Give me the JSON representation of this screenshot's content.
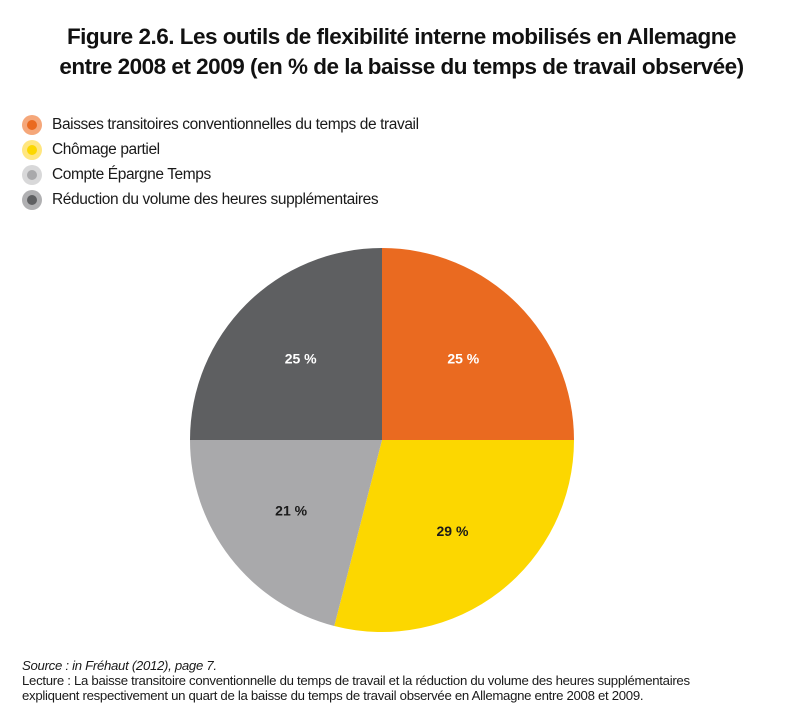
{
  "title_line1": "Figure 2.6. Les outils de flexibilité interne mobilisés en Allemagne",
  "title_line2": "entre 2008 et 2009 (en % de la baisse du temps de travail observée)",
  "colors": {
    "orange": "#EA6A20",
    "yellow": "#FCD700",
    "light_grey": "#A9A9AB",
    "dark_grey": "#5E5F61",
    "legend_orange_ring": "#F5A77A",
    "legend_yellow_ring": "#FFE680",
    "legend_light_grey_ring": "#D8D8D9",
    "legend_dark_grey_ring": "#B0B0B2"
  },
  "chart_data": {
    "type": "pie",
    "title": "Figure 2.6. Les outils de flexibilité interne mobilisés en Allemagne entre 2008 et 2009 (en % de la baisse du temps de travail observée)",
    "legend_position": "top-left",
    "start": "top, clockwise",
    "slices": [
      {
        "name": "Baisses transitoires conventionnelles du temps de travail",
        "value": 25,
        "label": "25 %",
        "color": "#EA6A20",
        "label_color": "#ffffff"
      },
      {
        "name": "Chômage partiel",
        "value": 29,
        "label": "29 %",
        "color": "#FCD700",
        "label_color": "#1a1a1a"
      },
      {
        "name": "Compte Épargne Temps",
        "value": 21,
        "label": "21 %",
        "color": "#A9A9AB",
        "label_color": "#1a1a1a"
      },
      {
        "name": "Réduction du volume des heures supplémentaires",
        "value": 25,
        "label": "25 %",
        "color": "#5E5F61",
        "label_color": "#ffffff"
      }
    ]
  },
  "legend": [
    {
      "label": "Baisses transitoires conventionnelles du temps de travail",
      "ring": "#F5A77A",
      "dot": "#EA6A20"
    },
    {
      "label": "Chômage partiel",
      "ring": "#FFE680",
      "dot": "#FCD700"
    },
    {
      "label": "Compte Épargne Temps",
      "ring": "#D8D8D9",
      "dot": "#A9A9AB"
    },
    {
      "label": "Réduction du volume des heures supplémentaires",
      "ring": "#B0B0B2",
      "dot": "#5E5F61"
    }
  ],
  "footer": {
    "source": "Source : in Fréhaut (2012), page 7.",
    "lecture_line1": "Lecture : La baisse transitoire conventionnelle du temps de travail et la réduction du volume des heures supplémentaires",
    "lecture_line2": "expliquent respectivement un quart de la baisse du temps de travail observée en Allemagne entre 2008 et 2009."
  }
}
